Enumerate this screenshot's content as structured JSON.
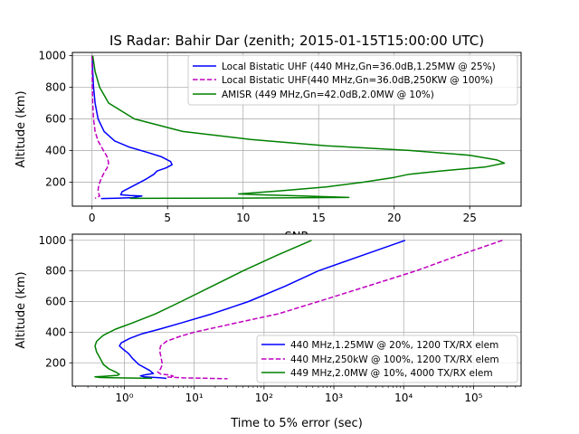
{
  "figure": {
    "title": "IS Radar: Bahir Dar (zenith; 2015-01-15T15:00:00 UTC)"
  },
  "chart_data": [
    {
      "type": "line",
      "xlabel": "SNR",
      "ylabel": "Altitude (km)",
      "xlim": [
        -1.3,
        28.4
      ],
      "ylim": [
        48,
        1020
      ],
      "xscale": "linear",
      "xticks": [
        0,
        5,
        10,
        15,
        20,
        25
      ],
      "yticks": [
        200,
        400,
        600,
        800,
        1000
      ],
      "grid": true,
      "legend_position": "top-right",
      "series": [
        {
          "name": "Local Bistatic UHF (440 MHz,Gn=36.0dB,1.25MW @ 25%)",
          "color": "#0000ff",
          "dash": "solid",
          "points": [
            [
              0.02,
              1000
            ],
            [
              0.05,
              900
            ],
            [
              0.1,
              800
            ],
            [
              0.2,
              700
            ],
            [
              0.4,
              600
            ],
            [
              0.8,
              520
            ],
            [
              1.5,
              460
            ],
            [
              2.5,
              420
            ],
            [
              3.6,
              390
            ],
            [
              4.6,
              360
            ],
            [
              5.2,
              330
            ],
            [
              5.3,
              310
            ],
            [
              4.9,
              290
            ],
            [
              4.3,
              270
            ],
            [
              4.1,
              250
            ],
            [
              3.6,
              220
            ],
            [
              2.8,
              180
            ],
            [
              2.0,
              140
            ],
            [
              1.9,
              120
            ],
            [
              2.5,
              115
            ],
            [
              3.3,
              112
            ],
            [
              2.7,
              102
            ],
            [
              1.6,
              98
            ],
            [
              0.6,
              96
            ]
          ]
        },
        {
          "name": "Local Bistatic UHF(440 MHz,Gn=36.0dB,250KW @ 100%)",
          "color": "#bf00bf",
          "dash": "dashed",
          "points": [
            [
              0.0,
              1000
            ],
            [
              0.01,
              900
            ],
            [
              0.02,
              800
            ],
            [
              0.05,
              700
            ],
            [
              0.1,
              600
            ],
            [
              0.2,
              520
            ],
            [
              0.4,
              460
            ],
            [
              0.7,
              410
            ],
            [
              1.0,
              360
            ],
            [
              1.1,
              320
            ],
            [
              1.0,
              290
            ],
            [
              0.8,
              260
            ],
            [
              0.6,
              220
            ],
            [
              0.45,
              180
            ],
            [
              0.4,
              150
            ],
            [
              0.45,
              125
            ],
            [
              0.5,
              112
            ],
            [
              0.35,
              104
            ],
            [
              0.2,
              98
            ]
          ]
        },
        {
          "name": "AMISR (449 MHz,Gn=42.0dB,2.0MW @ 10%)",
          "color": "#008000",
          "dash": "solid",
          "points": [
            [
              0.05,
              1000
            ],
            [
              0.2,
              900
            ],
            [
              0.5,
              800
            ],
            [
              1.1,
              700
            ],
            [
              2.8,
              600
            ],
            [
              6.0,
              520
            ],
            [
              10.5,
              470
            ],
            [
              15.5,
              430
            ],
            [
              21.0,
              400
            ],
            [
              25.0,
              370
            ],
            [
              26.8,
              340
            ],
            [
              27.3,
              320
            ],
            [
              26.0,
              295
            ],
            [
              23.0,
              270
            ],
            [
              21.0,
              250
            ],
            [
              20.0,
              230
            ],
            [
              18.0,
              200
            ],
            [
              15.5,
              170
            ],
            [
              12.5,
              145
            ],
            [
              9.7,
              125
            ],
            [
              11.0,
              120
            ],
            [
              14.0,
              112
            ],
            [
              17.0,
              103
            ],
            [
              10.0,
              99
            ],
            [
              2.5,
              97
            ]
          ]
        }
      ]
    },
    {
      "type": "line",
      "xlabel": "Time to 5% error (sec)",
      "ylabel": "Altitude (km)",
      "xlim": [
        0.18,
        480000
      ],
      "ylim": [
        48,
        1040
      ],
      "xscale": "log",
      "xticks": [
        1,
        10,
        100,
        1000,
        10000,
        100000
      ],
      "xtick_labels": [
        "10⁰",
        "10¹",
        "10²",
        "10³",
        "10⁴",
        "10⁵"
      ],
      "yticks": [
        200,
        400,
        600,
        800,
        1000
      ],
      "grid": true,
      "legend_position": "lower-right",
      "series": [
        {
          "name": "440 MHz,1.25MW @ 20%, 1200 TX/RX elem",
          "color": "#0000ff",
          "dash": "solid",
          "points": [
            [
              10500,
              1000
            ],
            [
              2500,
              900
            ],
            [
              600,
              800
            ],
            [
              200,
              700
            ],
            [
              60,
              600
            ],
            [
              18,
              520
            ],
            [
              6.5,
              460
            ],
            [
              3.2,
              420
            ],
            [
              1.8,
              390
            ],
            [
              1.2,
              360
            ],
            [
              0.9,
              330
            ],
            [
              0.85,
              310
            ],
            [
              0.95,
              290
            ],
            [
              1.15,
              260
            ],
            [
              1.3,
              230
            ],
            [
              1.6,
              190
            ],
            [
              2.3,
              150
            ],
            [
              2.6,
              130
            ],
            [
              2.0,
              122
            ],
            [
              1.7,
              115
            ],
            [
              1.9,
              109
            ],
            [
              3.2,
              103
            ],
            [
              4.0,
              98
            ]
          ]
        },
        {
          "name": "440 MHz,250kW @ 100%, 1200 TX/RX elem",
          "color": "#bf00bf",
          "dash": "dashed",
          "points": [
            [
              260000,
              1000
            ],
            [
              60000,
              900
            ],
            [
              15000,
              800
            ],
            [
              3000,
              700
            ],
            [
              600,
              600
            ],
            [
              160,
              520
            ],
            [
              50,
              470
            ],
            [
              20,
              430
            ],
            [
              10,
              400
            ],
            [
              6,
              370
            ],
            [
              4,
              340
            ],
            [
              3.3,
              310
            ],
            [
              3.2,
              280
            ],
            [
              3.3,
              250
            ],
            [
              3.4,
              220
            ],
            [
              3.5,
              190
            ],
            [
              3.3,
              160
            ],
            [
              3.0,
              140
            ],
            [
              3.3,
              127
            ],
            [
              4.5,
              120
            ],
            [
              5.0,
              113
            ],
            [
              4.2,
              107
            ],
            [
              7.0,
              102
            ],
            [
              18,
              98
            ],
            [
              30,
              96
            ]
          ]
        },
        {
          "name": "449 MHz,2.0MW @ 10%, 4000 TX/RX elem",
          "color": "#008000",
          "dash": "solid",
          "points": [
            [
              480,
              1000
            ],
            [
              150,
              900
            ],
            [
              50,
              800
            ],
            [
              18,
              700
            ],
            [
              6.5,
              600
            ],
            [
              2.8,
              520
            ],
            [
              1.3,
              460
            ],
            [
              0.75,
              420
            ],
            [
              0.5,
              380
            ],
            [
              0.4,
              340
            ],
            [
              0.38,
              310
            ],
            [
              0.4,
              270
            ],
            [
              0.45,
              230
            ],
            [
              0.5,
              190
            ],
            [
              0.6,
              160
            ],
            [
              0.75,
              140
            ],
            [
              0.85,
              125
            ],
            [
              0.8,
              118
            ],
            [
              0.5,
              112
            ],
            [
              0.38,
              108
            ],
            [
              0.45,
              104
            ],
            [
              1.0,
              101
            ],
            [
              2.5,
              99
            ]
          ]
        }
      ]
    }
  ]
}
